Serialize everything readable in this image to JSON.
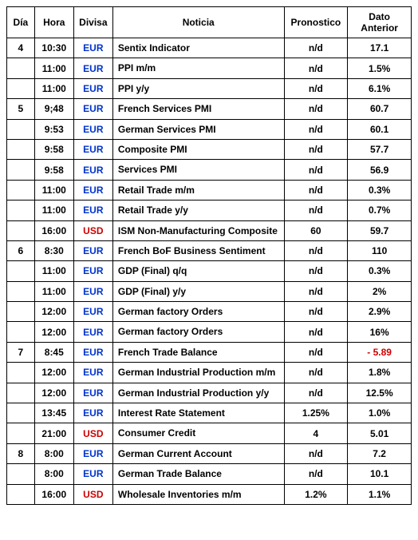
{
  "colors": {
    "eur": "#0033cc",
    "usd": "#cc0000",
    "negative": "#cc0000",
    "border": "#000000",
    "text": "#000000",
    "bg": "#ffffff"
  },
  "headers": {
    "dia": "Día",
    "hora": "Hora",
    "divisa": "Divisa",
    "noticia": "Noticia",
    "pronostico": "Pronostico",
    "dato": "Dato Anterior"
  },
  "rows": [
    {
      "dia": "4",
      "hora": "10:30",
      "divisa": "EUR",
      "noticia": "Sentix Indicator",
      "pron": "n/d",
      "dato": "17.1"
    },
    {
      "dia": "",
      "hora": "11:00",
      "divisa": "EUR",
      "noticia": "PPI m/m",
      "pron": "n/d",
      "dato": "1.5%"
    },
    {
      "dia": "",
      "hora": "11:00",
      "divisa": "EUR",
      "noticia": "PPI y/y",
      "pron": "n/d",
      "dato": "6.1%"
    },
    {
      "dia": "5",
      "hora": "9;48",
      "divisa": "EUR",
      "noticia": "French Services PMI",
      "pron": "n/d",
      "dato": "60.7"
    },
    {
      "dia": "",
      "hora": "9:53",
      "divisa": "EUR",
      "noticia": "German Services PMI",
      "pron": "n/d",
      "dato": "60.1"
    },
    {
      "dia": "",
      "hora": "9:58",
      "divisa": "EUR",
      "noticia": "Composite PMI",
      "pron": "n/d",
      "dato": "57.7"
    },
    {
      "dia": "",
      "hora": "9:58",
      "divisa": "EUR",
      "noticia": "Services PMI",
      "pron": "n/d",
      "dato": "56.9"
    },
    {
      "dia": "",
      "hora": "11:00",
      "divisa": "EUR",
      "noticia": "Retail Trade m/m",
      "pron": "n/d",
      "dato": "0.3%"
    },
    {
      "dia": "",
      "hora": "11:00",
      "divisa": "EUR",
      "noticia": "Retail Trade y/y",
      "pron": "n/d",
      "dato": "0.7%"
    },
    {
      "dia": "",
      "hora": "16:00",
      "divisa": "USD",
      "noticia": "ISM Non-Manufacturing Composite",
      "pron": "60",
      "dato": "59.7"
    },
    {
      "dia": "6",
      "hora": "8:30",
      "divisa": "EUR",
      "noticia": "French BoF Business Sentiment",
      "pron": "n/d",
      "dato": "110"
    },
    {
      "dia": "",
      "hora": "11:00",
      "divisa": "EUR",
      "noticia": "GDP (Final) q/q",
      "pron": "n/d",
      "dato": "0.3%"
    },
    {
      "dia": "",
      "hora": "11:00",
      "divisa": "EUR",
      "noticia": "GDP (Final) y/y",
      "pron": "n/d",
      "dato": "2%"
    },
    {
      "dia": "",
      "hora": "12:00",
      "divisa": "EUR",
      "noticia": "German factory Orders",
      "pron": "n/d",
      "dato": "2.9%"
    },
    {
      "dia": "",
      "hora": "12:00",
      "divisa": "EUR",
      "noticia": "German factory Orders",
      "pron": "n/d",
      "dato": "16%"
    },
    {
      "dia": "7",
      "hora": "8:45",
      "divisa": "EUR",
      "noticia": "French Trade Balance",
      "pron": "n/d",
      "dato": "- 5.89",
      "dato_negative": true
    },
    {
      "dia": "",
      "hora": "12:00",
      "divisa": "EUR",
      "noticia": "German Industrial Production m/m",
      "pron": "n/d",
      "dato": "1.8%"
    },
    {
      "dia": "",
      "hora": "12:00",
      "divisa": "EUR",
      "noticia": "German Industrial Production y/y",
      "pron": "n/d",
      "dato": "12.5%"
    },
    {
      "dia": "",
      "hora": "13:45",
      "divisa": "EUR",
      "noticia": "Interest Rate  Statement",
      "pron": "1.25%",
      "dato": "1.0%"
    },
    {
      "dia": "",
      "hora": "21:00",
      "divisa": "USD",
      "noticia": "Consumer Credit",
      "pron": "4",
      "dato": "5.01"
    },
    {
      "dia": "8",
      "hora": "8:00",
      "divisa": "EUR",
      "noticia": "German Current Account",
      "pron": "n/d",
      "dato": "7.2"
    },
    {
      "dia": "",
      "hora": "8:00",
      "divisa": "EUR",
      "noticia": "German Trade Balance",
      "pron": "n/d",
      "dato": "10.1"
    },
    {
      "dia": "",
      "hora": "16:00",
      "divisa": "USD",
      "noticia": "Wholesale Inventories m/m",
      "pron": "1.2%",
      "dato": "1.1%"
    }
  ]
}
